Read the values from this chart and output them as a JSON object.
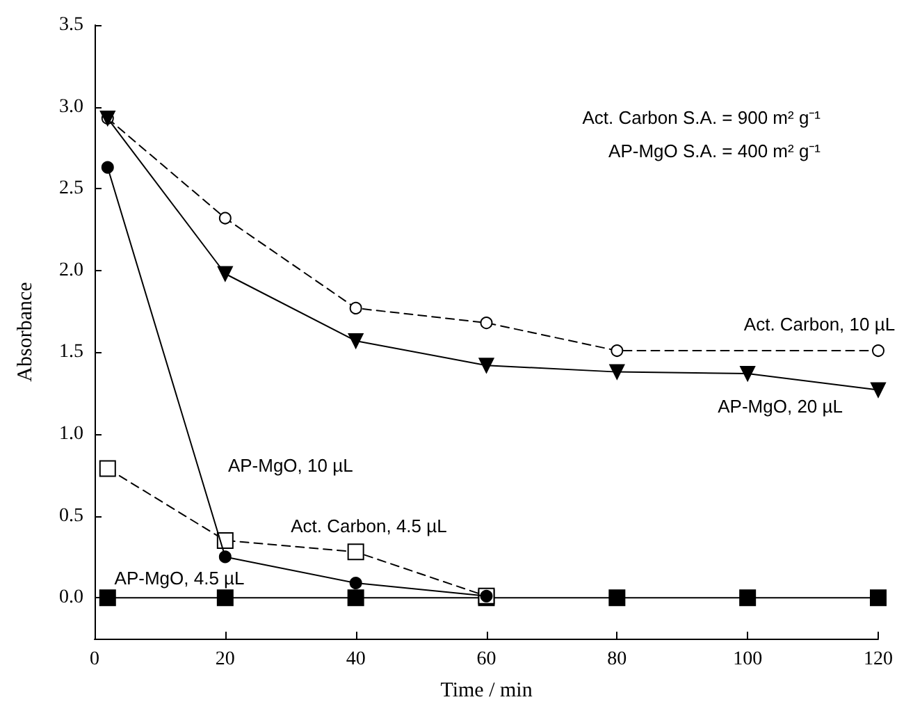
{
  "chart_data": {
    "type": "line",
    "xlabel": "Time / min",
    "ylabel": "Absorbance",
    "xlim": [
      0,
      120
    ],
    "xticks": [
      0,
      20,
      40,
      60,
      80,
      100,
      120
    ],
    "ylim": [
      -0.25,
      3.5
    ],
    "yticks": [
      {
        "value": 0,
        "label": "0.0"
      },
      {
        "value": 0.5,
        "label": "0.5"
      },
      {
        "value": 1,
        "label": "1.0"
      },
      {
        "value": 1.5,
        "label": "1.5"
      },
      {
        "value": 2,
        "label": "2.0"
      },
      {
        "value": 2.5,
        "label": "2.5"
      },
      {
        "value": 3,
        "label": "3.0"
      },
      {
        "value": 3.5,
        "label": "3.5"
      }
    ],
    "grid": false,
    "legend": false,
    "annotations": [
      "Act. Carbon S.A. = 900 m² g⁻¹",
      "AP-MgO S.A. = 400 m² g⁻¹"
    ],
    "series": [
      {
        "name": "Act. Carbon, 10 µL",
        "color": "#000000",
        "marker": "circle",
        "line_style": "dashed",
        "x": [
          2,
          20,
          40,
          60,
          80,
          120
        ],
        "values": [
          2.93,
          2.32,
          1.77,
          1.68,
          1.51,
          1.51
        ]
      },
      {
        "name": "AP-MgO, 20 µL",
        "color": "#000000",
        "marker": "triangle",
        "line_style": "solid",
        "x": [
          2,
          20,
          40,
          60,
          80,
          100,
          120
        ],
        "values": [
          2.93,
          1.98,
          1.57,
          1.42,
          1.38,
          1.37,
          1.27
        ]
      },
      {
        "name": "AP-MgO, 10 µL",
        "color": "#000000",
        "marker": "circle",
        "line_style": "solid",
        "x": [
          2,
          20,
          40,
          60
        ],
        "values": [
          2.63,
          0.25,
          0.09,
          0.01
        ]
      },
      {
        "name": "Act. Carbon, 4.5 µL",
        "color": "#000000",
        "marker": "square",
        "line_style": "dashed",
        "x": [
          2,
          20,
          40,
          60
        ],
        "values": [
          0.79,
          0.35,
          0.28,
          0.01
        ]
      },
      {
        "name": "AP-MgO, 4.5 µL",
        "color": "#000000",
        "marker": "square",
        "line_style": "solid",
        "x": [
          2,
          20,
          40,
          60,
          80,
          100,
          120
        ],
        "values": [
          0,
          0,
          0,
          0,
          0,
          0,
          0
        ]
      }
    ]
  }
}
